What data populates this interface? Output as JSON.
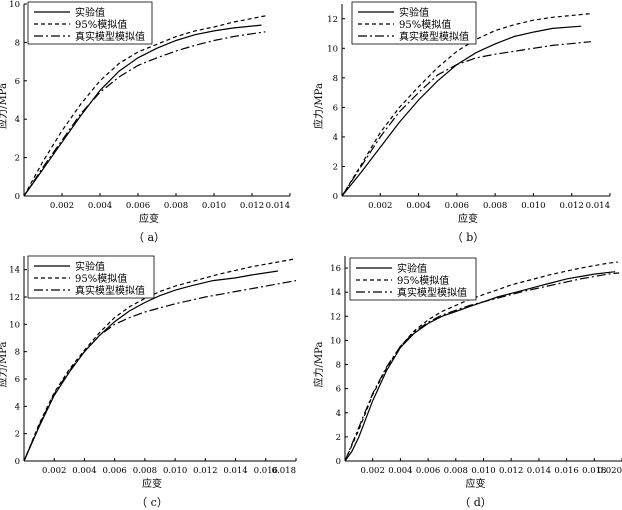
{
  "figure": {
    "styles": {
      "series_dash": [
        "",
        "4 3",
        "9 3 2 3"
      ],
      "axis_color": "#000000",
      "line_color": "#000000"
    }
  },
  "chart_data": [
    {
      "type": "line",
      "panel_label": "（ a）",
      "xlabel": "应变",
      "ylabel": "应力/MPa",
      "xlim": [
        0,
        0.014
      ],
      "ylim": [
        0,
        10
      ],
      "xticks": [
        0.002,
        0.004,
        0.006,
        0.008,
        0.01,
        0.012,
        0.014
      ],
      "xtick_labels": [
        "0.002",
        "0.004",
        "0.006",
        "0.008",
        "0.010",
        "0.012",
        "0.014"
      ],
      "yticks": [
        0,
        2,
        4,
        6,
        8,
        10
      ],
      "ytick_labels": [
        "0",
        "2",
        "4",
        "6",
        "8",
        "10"
      ],
      "legend_position": "top-left",
      "series": [
        {
          "name": "实验值",
          "x": [
            0,
            0.001,
            0.002,
            0.003,
            0.004,
            0.005,
            0.006,
            0.007,
            0.008,
            0.009,
            0.01,
            0.011,
            0.0125
          ],
          "y": [
            0,
            1.4,
            2.8,
            4.2,
            5.5,
            6.5,
            7.2,
            7.7,
            8.1,
            8.4,
            8.6,
            8.75,
            8.9
          ]
        },
        {
          "name": "95%模拟值",
          "x": [
            0,
            0.001,
            0.002,
            0.003,
            0.004,
            0.005,
            0.006,
            0.007,
            0.008,
            0.009,
            0.01,
            0.011,
            0.0128
          ],
          "y": [
            0,
            1.8,
            3.4,
            4.8,
            6.0,
            6.9,
            7.5,
            7.9,
            8.3,
            8.6,
            8.8,
            9.05,
            9.4
          ]
        },
        {
          "name": "真实模型模拟值",
          "x": [
            0,
            0.001,
            0.002,
            0.003,
            0.004,
            0.005,
            0.006,
            0.007,
            0.008,
            0.009,
            0.01,
            0.011,
            0.0127
          ],
          "y": [
            0,
            1.5,
            2.9,
            4.3,
            5.4,
            6.2,
            6.8,
            7.2,
            7.55,
            7.85,
            8.1,
            8.3,
            8.55
          ]
        }
      ]
    },
    {
      "type": "line",
      "panel_label": "（ b）",
      "xlabel": "应变",
      "ylabel": "应力/MPa",
      "xlim": [
        0,
        0.014
      ],
      "ylim": [
        0,
        13
      ],
      "xticks": [
        0.002,
        0.004,
        0.006,
        0.008,
        0.01,
        0.012,
        0.014
      ],
      "xtick_labels": [
        "0.002",
        "0.004",
        "0.006",
        "0.008",
        "0.010",
        "0.012",
        "0.014"
      ],
      "yticks": [
        0,
        2,
        4,
        6,
        8,
        10,
        12
      ],
      "ytick_labels": [
        "0",
        "2",
        "4",
        "6",
        "8",
        "10",
        "12"
      ],
      "legend_position": "top-center",
      "series": [
        {
          "name": "实验值",
          "x": [
            0,
            0.001,
            0.002,
            0.003,
            0.004,
            0.005,
            0.006,
            0.007,
            0.008,
            0.009,
            0.01,
            0.011,
            0.0125
          ],
          "y": [
            0,
            1.6,
            3.3,
            5.0,
            6.5,
            7.8,
            8.9,
            9.7,
            10.3,
            10.8,
            11.1,
            11.35,
            11.5
          ]
        },
        {
          "name": "95%模拟值",
          "x": [
            0,
            0.001,
            0.002,
            0.003,
            0.004,
            0.005,
            0.006,
            0.007,
            0.008,
            0.009,
            0.01,
            0.011,
            0.013
          ],
          "y": [
            0,
            2.1,
            4.3,
            6.0,
            7.4,
            8.7,
            9.8,
            10.6,
            11.2,
            11.6,
            11.9,
            12.1,
            12.35
          ]
        },
        {
          "name": "真实模型模拟值",
          "x": [
            0,
            0.001,
            0.002,
            0.003,
            0.004,
            0.005,
            0.006,
            0.007,
            0.008,
            0.009,
            0.01,
            0.011,
            0.013
          ],
          "y": [
            0,
            2.0,
            4.0,
            5.7,
            7.0,
            8.2,
            8.9,
            9.35,
            9.6,
            9.8,
            10.0,
            10.2,
            10.45
          ]
        }
      ]
    },
    {
      "type": "line",
      "panel_label": "（ c）",
      "xlabel": "应变",
      "ylabel": "应力/MPa",
      "xlim": [
        0,
        0.018
      ],
      "ylim": [
        0,
        15
      ],
      "xticks": [
        0.002,
        0.004,
        0.006,
        0.008,
        0.01,
        0.012,
        0.014,
        0.016,
        0.018
      ],
      "xtick_labels": [
        "0.002",
        "0.004",
        "0.006",
        "0.008",
        "0.010",
        "0.012",
        "0.014",
        "0.016",
        "0.018"
      ],
      "yticks": [
        0,
        2,
        4,
        6,
        8,
        10,
        12,
        14
      ],
      "ytick_labels": [
        "0",
        "2",
        "4",
        "6",
        "8",
        "10",
        "12",
        "14"
      ],
      "legend_position": "top-left",
      "series": [
        {
          "name": "实验值",
          "x": [
            0,
            0.001,
            0.002,
            0.003,
            0.004,
            0.005,
            0.006,
            0.007,
            0.008,
            0.009,
            0.01,
            0.011,
            0.0125,
            0.014,
            0.015,
            0.0168
          ],
          "y": [
            0,
            2.5,
            4.8,
            6.5,
            8.0,
            9.2,
            10.2,
            11.0,
            11.6,
            12.1,
            12.5,
            12.8,
            13.2,
            13.4,
            13.6,
            13.9
          ]
        },
        {
          "name": "95%模拟值",
          "x": [
            0,
            0.001,
            0.002,
            0.003,
            0.004,
            0.005,
            0.006,
            0.007,
            0.008,
            0.009,
            0.01,
            0.011,
            0.012,
            0.013,
            0.014,
            0.015,
            0.016,
            0.017,
            0.018
          ],
          "y": [
            0,
            2.7,
            5.0,
            6.7,
            8.1,
            9.4,
            10.5,
            11.3,
            11.9,
            12.4,
            12.8,
            13.1,
            13.4,
            13.7,
            13.95,
            14.2,
            14.4,
            14.6,
            14.8
          ]
        },
        {
          "name": "真实模型模拟值",
          "x": [
            0,
            0.001,
            0.002,
            0.003,
            0.004,
            0.005,
            0.006,
            0.007,
            0.008,
            0.009,
            0.01,
            0.011,
            0.012,
            0.013,
            0.014,
            0.015,
            0.016,
            0.017,
            0.018
          ],
          "y": [
            0,
            2.6,
            4.9,
            6.6,
            8.0,
            9.2,
            10.0,
            10.5,
            10.9,
            11.2,
            11.5,
            11.75,
            12.0,
            12.2,
            12.4,
            12.6,
            12.8,
            13.0,
            13.2
          ]
        }
      ]
    },
    {
      "type": "line",
      "panel_label": "（ d）",
      "xlabel": "应变",
      "ylabel": "应力/MPa",
      "xlim": [
        0,
        0.02
      ],
      "ylim": [
        0,
        17
      ],
      "xticks": [
        0.002,
        0.004,
        0.006,
        0.008,
        0.01,
        0.012,
        0.014,
        0.016,
        0.018,
        0.02
      ],
      "xtick_labels": [
        "0.002",
        "0.004",
        "0.006",
        "0.008",
        "0.010",
        "0.012",
        "0.014",
        "0.016",
        "0.018",
        "0.020"
      ],
      "yticks": [
        0,
        2,
        4,
        6,
        8,
        10,
        12,
        14,
        16
      ],
      "ytick_labels": [
        "0",
        "2",
        "4",
        "6",
        "8",
        "10",
        "12",
        "14",
        "16"
      ],
      "legend_position": "top-left",
      "series": [
        {
          "name": "实验值",
          "x": [
            0,
            0.0005,
            0.001,
            0.0015,
            0.002,
            0.003,
            0.004,
            0.005,
            0.006,
            0.007,
            0.008,
            0.009,
            0.01,
            0.011,
            0.012,
            0.013,
            0.014,
            0.015,
            0.016,
            0.017,
            0.018,
            0.0195
          ],
          "y": [
            0,
            0.8,
            2.0,
            3.5,
            5.0,
            7.5,
            9.4,
            10.6,
            11.4,
            12.0,
            12.4,
            12.8,
            13.2,
            13.6,
            13.9,
            14.2,
            14.5,
            14.8,
            15.1,
            15.3,
            15.5,
            15.7
          ]
        },
        {
          "name": "95%模拟值",
          "x": [
            0,
            0.001,
            0.002,
            0.003,
            0.004,
            0.005,
            0.006,
            0.007,
            0.008,
            0.009,
            0.01,
            0.011,
            0.012,
            0.013,
            0.014,
            0.015,
            0.016,
            0.017,
            0.018,
            0.019,
            0.0197
          ],
          "y": [
            0,
            2.6,
            5.5,
            7.7,
            9.5,
            10.8,
            11.7,
            12.4,
            12.9,
            13.4,
            13.8,
            14.2,
            14.6,
            14.9,
            15.2,
            15.5,
            15.75,
            16.0,
            16.2,
            16.4,
            16.5
          ]
        },
        {
          "name": "真实模型模拟值",
          "x": [
            0,
            0.001,
            0.002,
            0.003,
            0.004,
            0.005,
            0.006,
            0.007,
            0.008,
            0.009,
            0.01,
            0.011,
            0.012,
            0.013,
            0.014,
            0.015,
            0.016,
            0.017,
            0.018,
            0.019,
            0.0198
          ],
          "y": [
            0,
            2.8,
            5.6,
            7.8,
            9.5,
            10.7,
            11.5,
            12.1,
            12.5,
            12.9,
            13.2,
            13.5,
            13.8,
            14.1,
            14.35,
            14.6,
            14.85,
            15.1,
            15.3,
            15.5,
            15.6
          ]
        }
      ]
    }
  ]
}
